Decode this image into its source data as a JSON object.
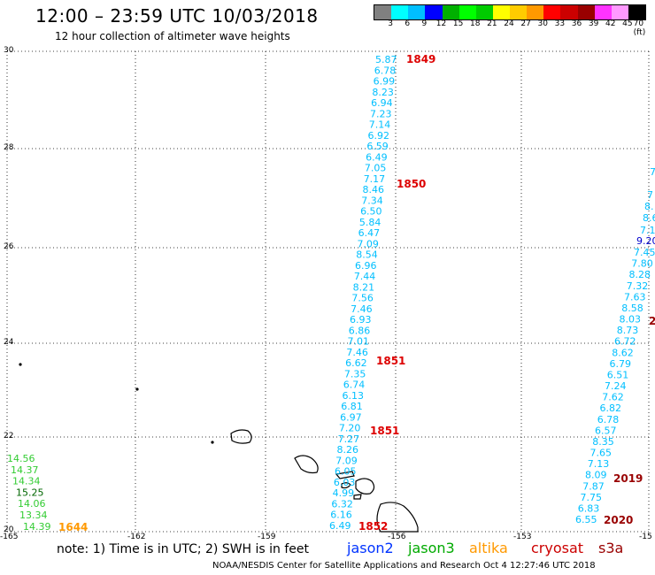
{
  "header": {
    "title": "12:00 – 23:59 UTC 10/03/2018",
    "subtitle": "12 hour collection of altimeter wave heights"
  },
  "colorbar": {
    "colors": [
      "#808080",
      "#00ffff",
      "#00bfff",
      "#0000ff",
      "#00b000",
      "#00ff00",
      "#00cc00",
      "#ffff00",
      "#ffcc00",
      "#ff9900",
      "#ff0000",
      "#cc0000",
      "#990000",
      "#ff33ff",
      "#ff99ff",
      "#000000"
    ],
    "labels": [
      "3",
      "6",
      "9",
      "12",
      "15",
      "18",
      "21",
      "24",
      "27",
      "30",
      "33",
      "36",
      "39",
      "42",
      "45",
      "70 (ft)"
    ]
  },
  "axes": {
    "lon_labels": [
      "-165",
      "-162",
      "-159",
      "-156",
      "-153",
      "-15"
    ],
    "lat_labels": [
      "30",
      "28",
      "26",
      "24",
      "22",
      "20"
    ]
  },
  "tracks": {
    "jason2_main": {
      "color": "#00bfff",
      "values": [
        "5.87",
        "6.78",
        "6.99",
        "8.23",
        "6.94",
        "7.23",
        "7.14",
        "6.92",
        "6.59",
        "6.49",
        "7.05",
        "7.17",
        "8.46",
        "7.34",
        "6.50",
        "5.84",
        "6.47",
        "7.09",
        "8.54",
        "6.96",
        "7.44",
        "8.21",
        "7.56",
        "7.46",
        "6.93",
        "6.86",
        "7.01",
        "7.46",
        "6.62",
        "7.35",
        "6.74",
        "6.13",
        "6.81",
        "6.97",
        "7.20",
        "7.27",
        "8.26",
        "7.09",
        "6.05",
        "6.03",
        "4.99",
        "6.32",
        "6.16",
        "6.49"
      ],
      "times": [
        "1849",
        "1850",
        "1851",
        "1851",
        "1852"
      ]
    },
    "jason2_east": {
      "color": "#00bfff",
      "values": [
        "7.45",
        "7.80",
        "8.28",
        "7.32",
        "7.63",
        "8.58",
        "8.03",
        "8.73",
        "6.72",
        "8.62",
        "6.79",
        "6.51",
        "7.24",
        "7.62",
        "6.82",
        "6.78",
        "6.57",
        "8.35",
        "7.65",
        "7.13",
        "8.09",
        "7.87",
        "7.75",
        "6.83",
        "6.55"
      ],
      "edge_values": [
        "7",
        "7",
        "8.",
        "8.6",
        "7.1"
      ],
      "dark_value": "9.20",
      "times": [
        "2019",
        "2020"
      ],
      "partial_time": "2"
    },
    "jason3": {
      "color": "#33cc33",
      "values": [
        "14.56",
        "14.37",
        "14.34",
        "15.25",
        "14.06",
        "13.34",
        "14.39"
      ],
      "dark_index": 3,
      "time": "1644"
    }
  },
  "footer": {
    "note": "note: 1) Time is in UTC; 2) SWH is in feet",
    "legend": [
      {
        "label": "jason2",
        "color": "#0033ff"
      },
      {
        "label": "jason3",
        "color": "#00aa00"
      },
      {
        "label": "altika",
        "color": "#ff9900"
      },
      {
        "label": "cryosat",
        "color": "#cc0000"
      },
      {
        "label": "s3a",
        "color": "#990000"
      }
    ],
    "credit": "NOAA/NESDIS Center for Satellite Applications and Research    Oct  4 12:27:46 UTC 2018"
  }
}
